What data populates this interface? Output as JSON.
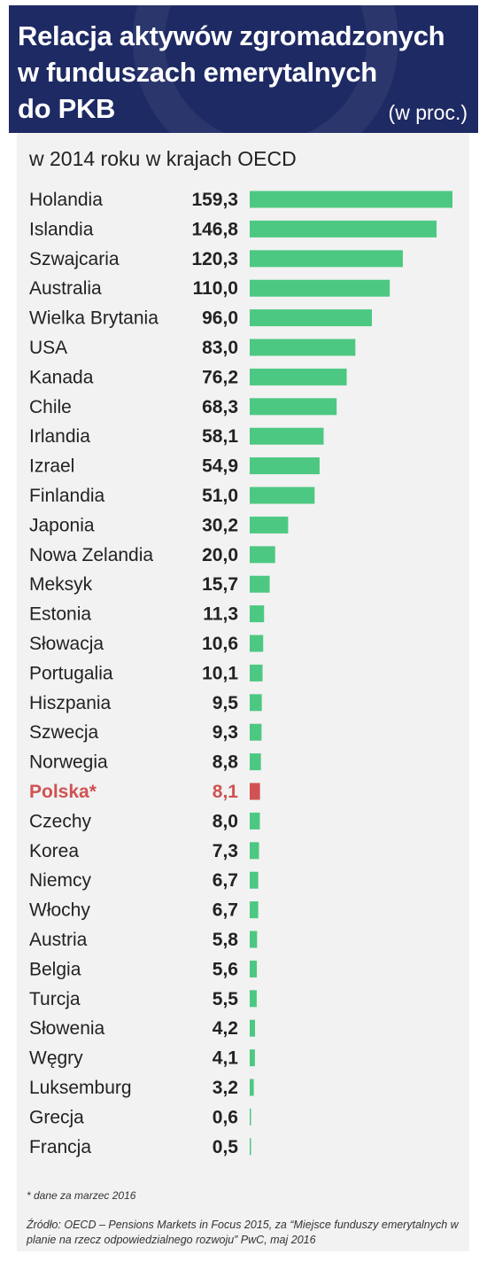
{
  "header": {
    "title": "Relacja aktywów zgromadzonych\nw funduszach emerytalnych\ndo PKB",
    "unit": "(w proc.)"
  },
  "subtitle": "w 2014 roku w krajach OECD",
  "colors": {
    "bar": "#4dc882",
    "highlight": "#d05252",
    "header_bg": "#1e2a63"
  },
  "chart_data": {
    "type": "bar",
    "orientation": "horizontal",
    "title": "Relacja aktywów zgromadzonych w funduszach emerytalnych do PKB",
    "unit": "(w proc.)",
    "subtitle": "w 2014 roku w krajach OECD",
    "highlight": "Polska*",
    "xlim": [
      0,
      159.3
    ],
    "categories": [
      "Holandia",
      "Islandia",
      "Szwajcaria",
      "Australia",
      "Wielka Brytania",
      "USA",
      "Kanada",
      "Chile",
      "Irlandia",
      "Izrael",
      "Finlandia",
      "Japonia",
      "Nowa Zelandia",
      "Meksyk",
      "Estonia",
      "Słowacja",
      "Portugalia",
      "Hiszpania",
      "Szwecja",
      "Norwegia",
      "Polska*",
      "Czechy",
      "Korea",
      "Niemcy",
      "Włochy",
      "Austria",
      "Belgia",
      "Turcja",
      "Słowenia",
      "Węgry",
      "Luksemburg",
      "Grecja",
      "Francja"
    ],
    "values": [
      159.3,
      146.8,
      120.3,
      110.0,
      96.0,
      83.0,
      76.2,
      68.3,
      58.1,
      54.9,
      51.0,
      30.2,
      20.0,
      15.7,
      11.3,
      10.6,
      10.1,
      9.5,
      9.3,
      8.8,
      8.1,
      8.0,
      7.3,
      6.7,
      6.7,
      5.8,
      5.6,
      5.5,
      4.2,
      4.1,
      3.2,
      0.6,
      0.5
    ],
    "labels": [
      "159,3",
      "146,8",
      "120,3",
      "110,0",
      "96,0",
      "83,0",
      "76,2",
      "68,3",
      "58,1",
      "54,9",
      "51,0",
      "30,2",
      "20,0",
      "15,7",
      "11,3",
      "10,6",
      "10,1",
      "9,5",
      "9,3",
      "8,8",
      "8,1",
      "8,0",
      "7,3",
      "6,7",
      "6,7",
      "5,8",
      "5,6",
      "5,5",
      "4,2",
      "4,1",
      "3,2",
      "0,6",
      "0,5"
    ]
  },
  "footer": {
    "note": "* dane za marzec 2016",
    "source": "Źródło: OECD – Pensions Markets in Focus 2015, za “Miejsce funduszy emerytalnych w planie na rzecz odpowiedzialnego rozwoju” PwC, maj 2016"
  }
}
